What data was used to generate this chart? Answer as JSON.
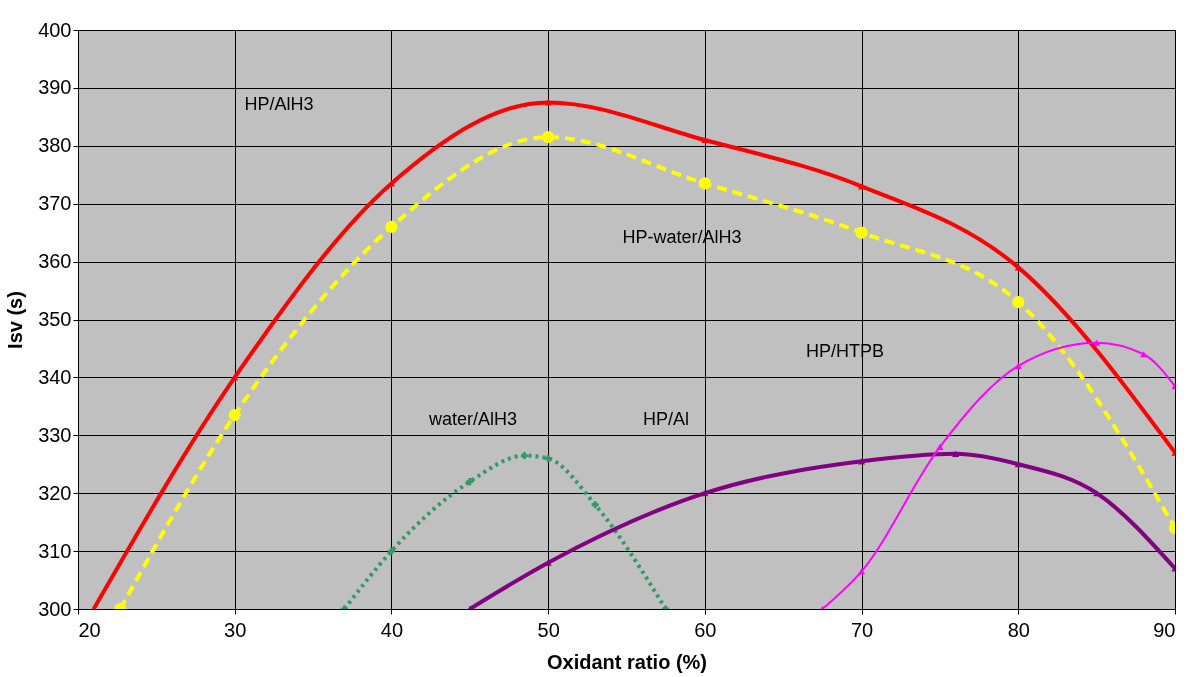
{
  "chart_data": {
    "type": "line",
    "xlabel": "Oxidant ratio (%)",
    "ylabel": "Isv (s)",
    "xlim": [
      20,
      90
    ],
    "ylim": [
      300,
      400
    ],
    "xticks": [
      20,
      30,
      40,
      50,
      60,
      70,
      80,
      90
    ],
    "yticks": [
      300,
      310,
      320,
      330,
      340,
      350,
      360,
      370,
      380,
      390,
      400
    ],
    "grid": true,
    "series": [
      {
        "color": "#ff0000",
        "marker": "triangle",
        "line_style": "solid",
        "x": [
          21,
          30,
          40,
          50,
          60,
          70,
          80,
          90
        ],
        "values": [
          300,
          340,
          373.5,
          387.5,
          381,
          373,
          359,
          327
        ]
      },
      {
        "color": "#ffff00",
        "marker": "circle",
        "line_style": "dashed",
        "x": [
          22.7,
          30,
          40,
          50,
          60,
          70,
          80,
          90
        ],
        "values": [
          300,
          333.5,
          366,
          381.5,
          373.5,
          365,
          353,
          314
        ]
      },
      {
        "color": "#339966",
        "marker": "cross",
        "line_style": "dotted",
        "x": [
          37,
          40,
          45,
          48.5,
          50,
          53,
          57.5
        ],
        "values": [
          300,
          310,
          322,
          326.5,
          326,
          318,
          300
        ]
      },
      {
        "color": "#800080",
        "marker": "triangle",
        "line_style": "solid",
        "x": [
          45,
          50,
          60,
          70,
          76,
          80,
          85,
          90
        ],
        "values": [
          300,
          308,
          320,
          325.5,
          326.8,
          325,
          320,
          307
        ]
      },
      {
        "color": "#ff00ff",
        "marker": "triangle",
        "line_style": "solid",
        "x": [
          67.5,
          70,
          75,
          80,
          85,
          88,
          90
        ],
        "values": [
          300,
          306.5,
          328,
          342,
          346,
          344,
          338.5
        ]
      }
    ],
    "annotations": [
      "HP/AlH3",
      "HP-water/AlH3",
      "water/AlH3",
      "HP/Al",
      "HP/HTPB"
    ]
  }
}
